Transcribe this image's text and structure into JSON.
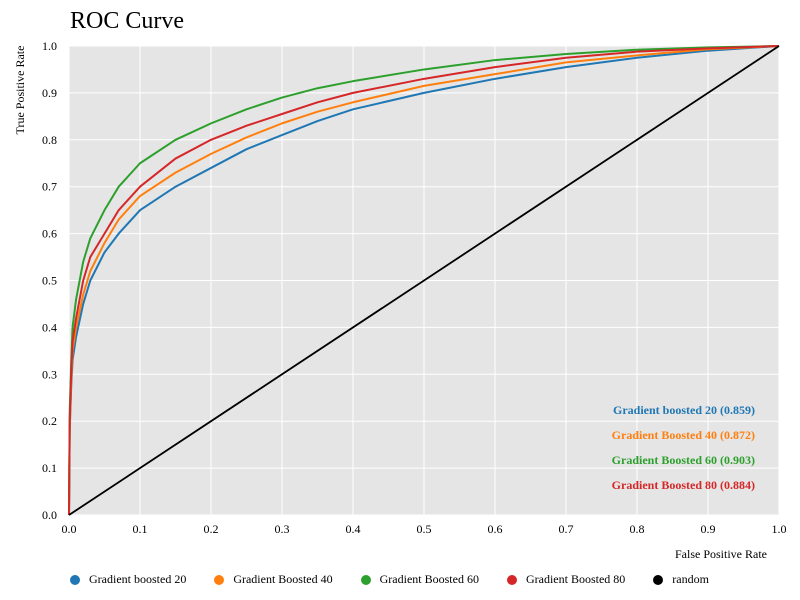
{
  "chart_data": {
    "type": "line",
    "title": "ROC Curve",
    "xlabel": "False Positive Rate",
    "ylabel": "True Positive Rate",
    "xlim": [
      0,
      1
    ],
    "ylim": [
      0,
      1
    ],
    "xticks": [
      "0.0",
      "0.1",
      "0.2",
      "0.3",
      "0.4",
      "0.5",
      "0.6",
      "0.7",
      "0.8",
      "0.9",
      "1.0"
    ],
    "yticks": [
      "0.0",
      "0.1",
      "0.2",
      "0.3",
      "0.4",
      "0.5",
      "0.6",
      "0.7",
      "0.8",
      "0.9",
      "1.0"
    ],
    "grid": true,
    "legend_position": "bottom",
    "series": [
      {
        "name": "Gradient boosted 20",
        "color": "#1f77b4",
        "auc_label": "Gradient boosted 20 (0.859)",
        "x": [
          0,
          0.001,
          0.003,
          0.005,
          0.01,
          0.02,
          0.03,
          0.05,
          0.07,
          0.1,
          0.15,
          0.2,
          0.25,
          0.3,
          0.35,
          0.4,
          0.5,
          0.6,
          0.7,
          0.8,
          0.9,
          1.0
        ],
        "y": [
          0,
          0.18,
          0.27,
          0.33,
          0.38,
          0.45,
          0.5,
          0.56,
          0.6,
          0.65,
          0.7,
          0.74,
          0.78,
          0.81,
          0.84,
          0.865,
          0.9,
          0.93,
          0.955,
          0.975,
          0.99,
          1.0
        ]
      },
      {
        "name": "Gradient Boosted 40",
        "color": "#ff7f0e",
        "auc_label": "Gradient Boosted 40 (0.872)",
        "x": [
          0,
          0.001,
          0.003,
          0.005,
          0.01,
          0.02,
          0.03,
          0.05,
          0.07,
          0.1,
          0.15,
          0.2,
          0.25,
          0.3,
          0.35,
          0.4,
          0.5,
          0.6,
          0.7,
          0.8,
          0.9,
          1.0
        ],
        "y": [
          0,
          0.19,
          0.28,
          0.35,
          0.4,
          0.47,
          0.52,
          0.58,
          0.63,
          0.68,
          0.73,
          0.77,
          0.805,
          0.835,
          0.86,
          0.88,
          0.915,
          0.94,
          0.965,
          0.98,
          0.993,
          1.0
        ]
      },
      {
        "name": "Gradient Boosted 60",
        "color": "#2ca02c",
        "auc_label": "Gradient Boosted 60 (0.903)",
        "x": [
          0,
          0.001,
          0.003,
          0.005,
          0.01,
          0.02,
          0.03,
          0.05,
          0.07,
          0.1,
          0.15,
          0.2,
          0.25,
          0.3,
          0.35,
          0.4,
          0.5,
          0.6,
          0.7,
          0.8,
          0.9,
          1.0
        ],
        "y": [
          0,
          0.22,
          0.32,
          0.4,
          0.46,
          0.54,
          0.59,
          0.65,
          0.7,
          0.75,
          0.8,
          0.835,
          0.865,
          0.89,
          0.91,
          0.925,
          0.95,
          0.97,
          0.983,
          0.992,
          0.997,
          1.0
        ]
      },
      {
        "name": "Gradient Boosted 80",
        "color": "#d62728",
        "auc_label": "Gradient Boosted 80 (0.884)",
        "x": [
          0,
          0.001,
          0.003,
          0.005,
          0.01,
          0.02,
          0.03,
          0.05,
          0.07,
          0.1,
          0.15,
          0.2,
          0.25,
          0.3,
          0.35,
          0.4,
          0.5,
          0.6,
          0.7,
          0.8,
          0.9,
          1.0
        ],
        "y": [
          0,
          0.2,
          0.3,
          0.37,
          0.42,
          0.5,
          0.55,
          0.6,
          0.65,
          0.7,
          0.76,
          0.8,
          0.83,
          0.855,
          0.88,
          0.9,
          0.93,
          0.955,
          0.975,
          0.988,
          0.995,
          1.0
        ]
      },
      {
        "name": "random",
        "color": "#000000",
        "x": [
          0,
          1
        ],
        "y": [
          0,
          1
        ]
      }
    ]
  }
}
